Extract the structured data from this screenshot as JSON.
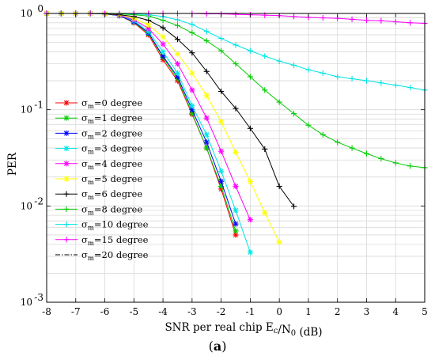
{
  "chart_data": {
    "type": "line",
    "x_axis": {
      "label": "SNR per real chip E_c/N_0 (dB)",
      "min": -8,
      "max": 5,
      "ticks": [
        "-8",
        "-7",
        "-6",
        "-5",
        "-4",
        "-3",
        "-2",
        "-1",
        "0",
        "1",
        "2",
        "3",
        "4",
        "5"
      ]
    },
    "y_axis": {
      "label": "PER",
      "scale": "log",
      "min": 0.001,
      "max": 1,
      "ticks": [
        {
          "value": 1,
          "base": "10",
          "exp": "0"
        },
        {
          "value": 0.1,
          "base": "10",
          "exp": "-1"
        },
        {
          "value": 0.01,
          "base": "10",
          "exp": "-2"
        },
        {
          "value": 0.001,
          "base": "10",
          "exp": "-3"
        }
      ]
    },
    "grid": true,
    "legend_position": "lower-left",
    "series": [
      {
        "name": "σm=0 degree",
        "sub": "m",
        "label_rest": "=0 degree",
        "color": "#ff0000",
        "marker": "asterisk",
        "dash": "",
        "x": [
          -8,
          -7.5,
          -7,
          -6.5,
          -6,
          -5.5,
          -5,
          -4.5,
          -4,
          -3.5,
          -3,
          -2.5,
          -2,
          -1.5
        ],
        "y": [
          1,
          1,
          1,
          1,
          0.99,
          0.95,
          0.8,
          0.6,
          0.33,
          0.2,
          0.09,
          0.04,
          0.015,
          0.005
        ]
      },
      {
        "name": "σm=1 degree",
        "sub": "m",
        "label_rest": "=1 degree",
        "color": "#00cc00",
        "marker": "asterisk",
        "dash": "",
        "x": [
          -8,
          -7.5,
          -7,
          -6.5,
          -6,
          -5.5,
          -5,
          -4.5,
          -4,
          -3.5,
          -3,
          -2.5,
          -2,
          -1.5
        ],
        "y": [
          1,
          1,
          1,
          1,
          0.99,
          0.95,
          0.81,
          0.62,
          0.35,
          0.21,
          0.092,
          0.04,
          0.016,
          0.0055
        ]
      },
      {
        "name": "σm=2 degree",
        "sub": "m",
        "label_rest": "=2 degree",
        "color": "#0000ff",
        "marker": "asterisk",
        "dash": "",
        "x": [
          -8,
          -7.5,
          -7,
          -6.5,
          -6,
          -5.5,
          -5,
          -4.5,
          -4,
          -3.5,
          -3,
          -2.5,
          -2,
          -1.5
        ],
        "y": [
          1,
          1,
          1,
          1,
          0.99,
          0.95,
          0.82,
          0.63,
          0.36,
          0.22,
          0.1,
          0.046,
          0.018,
          0.0065
        ]
      },
      {
        "name": "σm=3 degree",
        "sub": "m",
        "label_rest": "=3 degree",
        "color": "#00e5e5",
        "marker": "asterisk",
        "dash": "",
        "x": [
          -8,
          -7.5,
          -7,
          -6.5,
          -6,
          -5.5,
          -5,
          -4.5,
          -4,
          -3.5,
          -3,
          -2.5,
          -2,
          -1.5,
          -1
        ],
        "y": [
          1,
          1,
          1,
          1,
          0.99,
          0.96,
          0.84,
          0.65,
          0.4,
          0.24,
          0.11,
          0.055,
          0.023,
          0.009,
          0.0033
        ]
      },
      {
        "name": "σm=4 degree",
        "sub": "m",
        "label_rest": "=4 degree",
        "color": "#ff00ff",
        "marker": "asterisk",
        "dash": "",
        "x": [
          -8,
          -7.5,
          -7,
          -6.5,
          -6,
          -5.5,
          -5,
          -4.5,
          -4,
          -3.5,
          -3,
          -2.5,
          -2,
          -1.5,
          -1
        ],
        "y": [
          1,
          1,
          1,
          1,
          0.99,
          0.96,
          0.86,
          0.7,
          0.48,
          0.3,
          0.16,
          0.082,
          0.037,
          0.016,
          0.0072
        ]
      },
      {
        "name": "σm=5 degree",
        "sub": "m",
        "label_rest": "=5 degree",
        "color": "#ffff00",
        "marker": "asterisk",
        "dash": "",
        "x": [
          -8,
          -7.5,
          -7,
          -6.5,
          -6,
          -5.5,
          -5,
          -4.5,
          -4,
          -3.5,
          -3,
          -2.5,
          -2,
          -1.5,
          -1,
          -0.5,
          0
        ],
        "y": [
          1,
          1,
          1,
          1,
          0.99,
          0.97,
          0.89,
          0.76,
          0.57,
          0.38,
          0.24,
          0.14,
          0.075,
          0.036,
          0.018,
          0.0085,
          0.0042
        ]
      },
      {
        "name": "σm=6 degree",
        "sub": "m",
        "label_rest": "=6 degree",
        "color": "#000000",
        "marker": "plus",
        "dash": "",
        "x": [
          -8,
          -7.5,
          -7,
          -6.5,
          -6,
          -5.5,
          -5,
          -4.5,
          -4,
          -3.5,
          -3,
          -2.5,
          -2,
          -1.5,
          -1,
          -0.5,
          0,
          0.5
        ],
        "y": [
          1,
          1,
          1,
          1,
          0.99,
          0.97,
          0.93,
          0.85,
          0.71,
          0.54,
          0.39,
          0.25,
          0.155,
          0.103,
          0.064,
          0.039,
          0.016,
          0.0099
        ]
      },
      {
        "name": "σm=8 degree",
        "sub": "m",
        "label_rest": "=8 degree",
        "color": "#00cc00",
        "marker": "plus",
        "dash": "",
        "x": [
          -8,
          -7.5,
          -7,
          -6.5,
          -6,
          -5.5,
          -5,
          -4.5,
          -4,
          -3.5,
          -3,
          -2.5,
          -2,
          -1.5,
          -1,
          -0.5,
          0,
          0.5,
          1,
          1.5,
          2,
          2.5,
          3,
          3.5,
          4,
          4.5,
          5
        ],
        "y": [
          1,
          1,
          1,
          1,
          1,
          0.99,
          0.97,
          0.94,
          0.85,
          0.75,
          0.63,
          0.52,
          0.41,
          0.3,
          0.22,
          0.16,
          0.12,
          0.091,
          0.069,
          0.055,
          0.046,
          0.04,
          0.035,
          0.031,
          0.028,
          0.026,
          0.025
        ]
      },
      {
        "name": "σm=10 degree",
        "sub": "m",
        "label_rest": "=10 degree",
        "color": "#00e5e5",
        "marker": "plus",
        "dash": "",
        "x": [
          -8,
          -7.5,
          -7,
          -6.5,
          -6,
          -5.5,
          -5,
          -4.5,
          -4,
          -3.5,
          -3,
          -2.5,
          -2,
          -1.5,
          -1,
          -0.5,
          0,
          0.5,
          1,
          1.5,
          2,
          2.5,
          3,
          3.5,
          4,
          4.5,
          5
        ],
        "y": [
          1,
          1,
          1,
          1,
          1,
          1,
          0.99,
          0.97,
          0.93,
          0.86,
          0.77,
          0.65,
          0.55,
          0.47,
          0.41,
          0.36,
          0.32,
          0.29,
          0.26,
          0.24,
          0.22,
          0.21,
          0.2,
          0.19,
          0.18,
          0.17,
          0.16
        ]
      },
      {
        "name": "σm=15 degree",
        "sub": "m",
        "label_rest": "=15 degree",
        "color": "#ff00ff",
        "marker": "plus",
        "dash": "",
        "x": [
          -8,
          -7.5,
          -7,
          -6.5,
          -6,
          -5.5,
          -5,
          -4.5,
          -4,
          -3.5,
          -3,
          -2.5,
          -2,
          -1.5,
          -1,
          -0.5,
          0,
          0.5,
          1,
          1.5,
          2,
          2.5,
          3,
          3.5,
          4,
          4.5,
          5
        ],
        "y": [
          1,
          1,
          1,
          1,
          1,
          1,
          1,
          1,
          1,
          1,
          1,
          0.99,
          0.99,
          0.98,
          0.97,
          0.96,
          0.95,
          0.93,
          0.91,
          0.9,
          0.89,
          0.87,
          0.85,
          0.84,
          0.82,
          0.8,
          0.79
        ]
      },
      {
        "name": "σm=20 degree",
        "sub": "m",
        "label_rest": "=20 degree",
        "color": "#000000",
        "marker": "none",
        "dash": "6,2,1.5,2",
        "x": [
          -8,
          -6,
          -4,
          -2,
          0,
          2,
          4,
          5
        ],
        "y": [
          1,
          1,
          1,
          1,
          1,
          1,
          1,
          1
        ]
      }
    ]
  },
  "caption": {
    "paren_open": "(",
    "letter": "a",
    "paren_close": ")"
  }
}
